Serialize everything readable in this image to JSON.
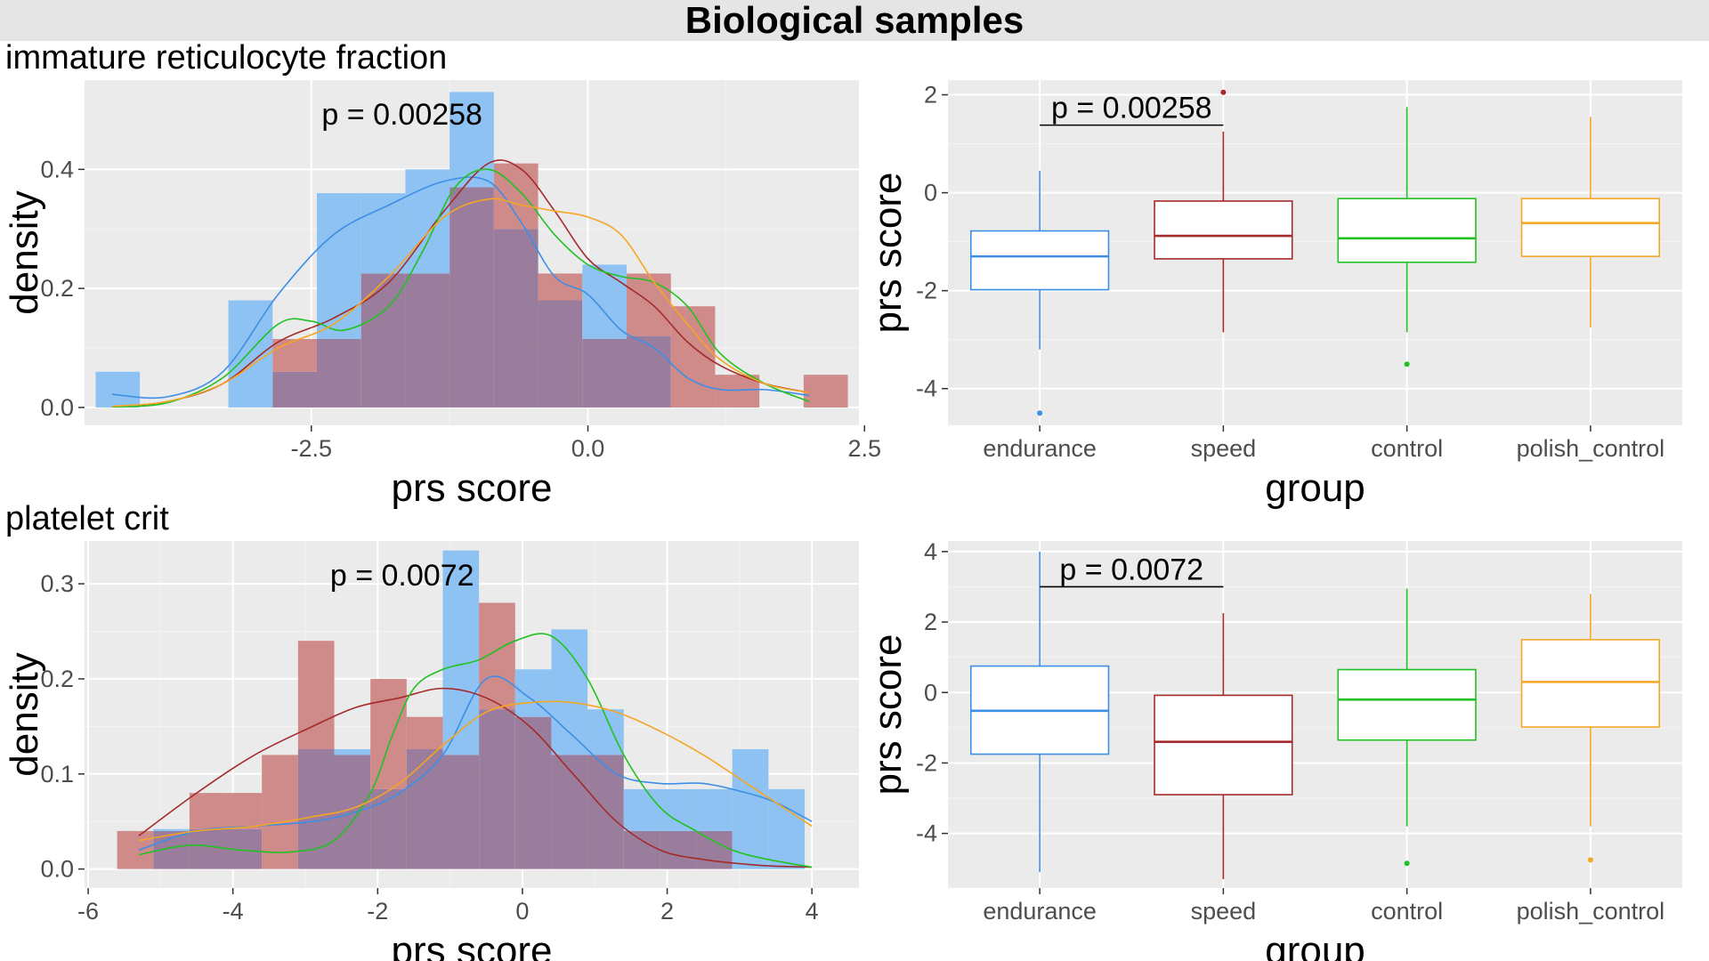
{
  "title": "Biological samples",
  "sections": [
    {
      "title": "immature reticulocyte fraction"
    },
    {
      "title": "platelet crit"
    }
  ],
  "colors": {
    "endurance": "#3c8fe6",
    "speed": "#a52a2a",
    "control": "#22c122",
    "polish_control": "#f5a623",
    "hist_endurance": "#8ec2f2",
    "hist_speed": "#cf8a8a",
    "hist_overlap": "#9a7c9c",
    "panel_bg": "#ebebeb"
  },
  "chart_data": [
    {
      "type": "histogram",
      "xlabel": "prs score",
      "ylabel": "density",
      "annotation": "p = 0.00258",
      "xlim": [
        -4.55,
        2.45
      ],
      "ylim": [
        -0.03,
        0.55
      ],
      "xticks": [
        -2.5,
        0.0,
        2.5
      ],
      "xtick_labels": [
        "-2.5",
        "0.0",
        "2.5"
      ],
      "yticks": [
        0.0,
        0.2,
        0.4
      ],
      "ytick_labels": [
        "0.0",
        "0.2",
        "0.4"
      ],
      "bin_edges": [
        -4.45,
        -4.05,
        -3.65,
        -3.25,
        -2.85,
        -2.45,
        -2.05,
        -1.65,
        -1.25,
        -0.85,
        -0.45,
        -0.05,
        0.35,
        0.75,
        1.15,
        1.55,
        1.95,
        2.35
      ],
      "hist_series": [
        {
          "group": "endurance",
          "values": [
            0.06,
            0,
            0,
            0.18,
            0.06,
            0.36,
            0.36,
            0.4,
            0.53,
            0.3,
            0.18,
            0.24,
            0.12,
            0.0,
            0,
            0,
            0
          ]
        },
        {
          "group": "speed",
          "values": [
            0,
            0,
            0,
            0,
            0.115,
            0.115,
            0.225,
            0.225,
            0.37,
            0.41,
            0.225,
            0.115,
            0.225,
            0.17,
            0.055,
            0,
            0.055
          ]
        }
      ],
      "density_series": [
        {
          "group": "endurance",
          "x": [
            -4.3,
            -3.8,
            -3.3,
            -2.8,
            -2.3,
            -1.8,
            -1.3,
            -0.9,
            -0.6,
            -0.3,
            0.0,
            0.3,
            0.6,
            0.9,
            1.2,
            1.6,
            2.0
          ],
          "y": [
            0.022,
            0.018,
            0.06,
            0.19,
            0.29,
            0.34,
            0.38,
            0.38,
            0.31,
            0.22,
            0.19,
            0.13,
            0.1,
            0.05,
            0.03,
            0.03,
            0.02
          ]
        },
        {
          "group": "speed",
          "x": [
            -4.3,
            -3.8,
            -3.3,
            -2.8,
            -2.3,
            -1.8,
            -1.3,
            -0.9,
            -0.6,
            -0.3,
            0.0,
            0.3,
            0.6,
            0.9,
            1.2,
            1.6,
            2.0
          ],
          "y": [
            0.001,
            0.01,
            0.04,
            0.11,
            0.15,
            0.21,
            0.33,
            0.41,
            0.4,
            0.33,
            0.25,
            0.21,
            0.17,
            0.11,
            0.07,
            0.04,
            0.025
          ]
        },
        {
          "group": "control",
          "x": [
            -4.3,
            -3.8,
            -3.3,
            -2.8,
            -2.5,
            -2.2,
            -1.8,
            -1.5,
            -1.2,
            -0.9,
            -0.6,
            -0.3,
            0.0,
            0.3,
            0.6,
            0.9,
            1.2,
            1.6,
            2.0
          ],
          "y": [
            0.001,
            0.008,
            0.05,
            0.14,
            0.145,
            0.13,
            0.17,
            0.26,
            0.37,
            0.4,
            0.36,
            0.29,
            0.24,
            0.22,
            0.21,
            0.17,
            0.09,
            0.04,
            0.01
          ]
        },
        {
          "group": "polish_control",
          "x": [
            -4.3,
            -3.8,
            -3.3,
            -2.8,
            -2.3,
            -1.8,
            -1.3,
            -0.9,
            -0.6,
            -0.3,
            0.0,
            0.3,
            0.6,
            0.9,
            1.2,
            1.6,
            2.0
          ],
          "y": [
            0.002,
            0.01,
            0.04,
            0.1,
            0.14,
            0.22,
            0.32,
            0.35,
            0.34,
            0.33,
            0.32,
            0.29,
            0.21,
            0.14,
            0.08,
            0.04,
            0.025
          ]
        }
      ]
    },
    {
      "type": "boxplot",
      "xlabel": "group",
      "ylabel": "prs score",
      "categories": [
        "endurance",
        "speed",
        "control",
        "polish_control"
      ],
      "ylim": [
        -4.75,
        2.3
      ],
      "yticks": [
        -4,
        -2,
        0,
        2
      ],
      "ytick_labels": [
        "-4",
        "-2",
        "0",
        "2"
      ],
      "annotation": "p = 0.00258",
      "bracket": [
        "endurance",
        "speed"
      ],
      "bracket_y": 1.38,
      "boxes": [
        {
          "group": "endurance",
          "lower_whisker": -3.2,
          "q1": -1.98,
          "median": -1.3,
          "q3": -0.78,
          "upper_whisker": 0.45,
          "outliers": [
            -4.5
          ]
        },
        {
          "group": "speed",
          "lower_whisker": -2.85,
          "q1": -1.35,
          "median": -0.88,
          "q3": -0.17,
          "upper_whisker": 1.25,
          "outliers": [
            2.05
          ]
        },
        {
          "group": "control",
          "lower_whisker": -2.85,
          "q1": -1.42,
          "median": -0.93,
          "q3": -0.12,
          "upper_whisker": 1.75,
          "outliers": [
            -3.5
          ]
        },
        {
          "group": "polish_control",
          "lower_whisker": -2.75,
          "q1": -1.3,
          "median": -0.62,
          "q3": -0.12,
          "upper_whisker": 1.55,
          "outliers": []
        }
      ]
    },
    {
      "type": "histogram",
      "xlabel": "prs score",
      "ylabel": "density",
      "annotation": "p = 0.0072",
      "xlim": [
        -6.05,
        4.65
      ],
      "ylim": [
        -0.02,
        0.345
      ],
      "xticks": [
        -6,
        -4,
        -2,
        0,
        2,
        4
      ],
      "xtick_labels": [
        "-6",
        "-4",
        "-2",
        "0",
        "2",
        "4"
      ],
      "yticks": [
        0.0,
        0.1,
        0.2,
        0.3
      ],
      "ytick_labels": [
        "0.0",
        "0.1",
        "0.2",
        "0.3"
      ],
      "bin_edges": [
        -5.6,
        -5.1,
        -4.6,
        -4.1,
        -3.6,
        -3.1,
        -2.6,
        -2.1,
        -1.6,
        -1.1,
        -0.6,
        -0.1,
        0.4,
        0.9,
        1.4,
        1.9,
        2.4,
        2.9,
        3.4,
        3.9
      ],
      "hist_series": [
        {
          "group": "endurance",
          "values": [
            0,
            0.042,
            0.042,
            0.042,
            0,
            0.126,
            0.126,
            0.084,
            0.126,
            0.335,
            0.168,
            0.21,
            0.252,
            0.168,
            0.084,
            0.084,
            0.084,
            0.126,
            0.084
          ]
        },
        {
          "group": "speed",
          "values": [
            0.04,
            0.04,
            0.08,
            0.08,
            0.12,
            0.24,
            0.12,
            0.2,
            0.16,
            0.12,
            0.28,
            0.16,
            0.12,
            0.12,
            0.04,
            0.04,
            0.04,
            0,
            0
          ]
        }
      ],
      "density_series": [
        {
          "group": "endurance",
          "x": [
            -5.3,
            -4.5,
            -3.7,
            -2.9,
            -2.3,
            -1.7,
            -1.1,
            -0.5,
            0.1,
            0.7,
            1.3,
            1.9,
            2.5,
            3.1,
            3.5,
            4.0
          ],
          "y": [
            0.02,
            0.04,
            0.045,
            0.05,
            0.06,
            0.08,
            0.12,
            0.2,
            0.18,
            0.14,
            0.1,
            0.09,
            0.09,
            0.08,
            0.07,
            0.05
          ]
        },
        {
          "group": "speed",
          "x": [
            -5.3,
            -4.5,
            -3.7,
            -2.9,
            -2.3,
            -1.7,
            -1.1,
            -0.5,
            0.1,
            0.7,
            1.3,
            1.9,
            2.5,
            3.1,
            3.5,
            4.0
          ],
          "y": [
            0.035,
            0.08,
            0.12,
            0.15,
            0.17,
            0.18,
            0.19,
            0.18,
            0.15,
            0.1,
            0.05,
            0.02,
            0.01,
            0.005,
            0.003,
            0.002
          ]
        },
        {
          "group": "control",
          "x": [
            -5.3,
            -4.6,
            -3.9,
            -3.2,
            -2.6,
            -2.1,
            -1.8,
            -1.5,
            -1.1,
            -0.6,
            -0.1,
            0.4,
            0.9,
            1.4,
            1.9,
            2.4,
            2.9,
            3.4,
            4.0
          ],
          "y": [
            0.015,
            0.025,
            0.02,
            0.018,
            0.03,
            0.08,
            0.14,
            0.19,
            0.21,
            0.22,
            0.24,
            0.245,
            0.2,
            0.12,
            0.065,
            0.04,
            0.02,
            0.01,
            0.002
          ]
        },
        {
          "group": "polish_control",
          "x": [
            -5.3,
            -4.5,
            -3.7,
            -2.9,
            -2.3,
            -1.7,
            -1.1,
            -0.5,
            0.1,
            0.7,
            1.3,
            1.9,
            2.5,
            3.1,
            3.5,
            4.0
          ],
          "y": [
            0.03,
            0.04,
            0.045,
            0.055,
            0.065,
            0.09,
            0.13,
            0.165,
            0.175,
            0.175,
            0.165,
            0.145,
            0.12,
            0.09,
            0.07,
            0.045
          ]
        }
      ]
    },
    {
      "type": "boxplot",
      "xlabel": "group",
      "ylabel": "prs score",
      "categories": [
        "endurance",
        "speed",
        "control",
        "polish_control"
      ],
      "ylim": [
        -5.55,
        4.3
      ],
      "yticks": [
        -4,
        -2,
        0,
        2,
        4
      ],
      "ytick_labels": [
        "-4",
        "-2",
        "0",
        "2",
        "4"
      ],
      "annotation": "p = 0.0072",
      "bracket": [
        "endurance",
        "speed"
      ],
      "bracket_y": 3.0,
      "boxes": [
        {
          "group": "endurance",
          "lower_whisker": -5.1,
          "q1": -1.75,
          "median": -0.52,
          "q3": 0.75,
          "upper_whisker": 4.0,
          "outliers": []
        },
        {
          "group": "speed",
          "lower_whisker": -5.3,
          "q1": -2.9,
          "median": -1.4,
          "q3": -0.08,
          "upper_whisker": 2.25,
          "outliers": []
        },
        {
          "group": "control",
          "lower_whisker": -3.8,
          "q1": -1.35,
          "median": -0.2,
          "q3": 0.65,
          "upper_whisker": 2.95,
          "outliers": [
            -4.85
          ]
        },
        {
          "group": "polish_control",
          "lower_whisker": -3.8,
          "q1": -0.98,
          "median": 0.3,
          "q3": 1.5,
          "upper_whisker": 2.8,
          "outliers": [
            -4.75
          ]
        }
      ]
    }
  ]
}
